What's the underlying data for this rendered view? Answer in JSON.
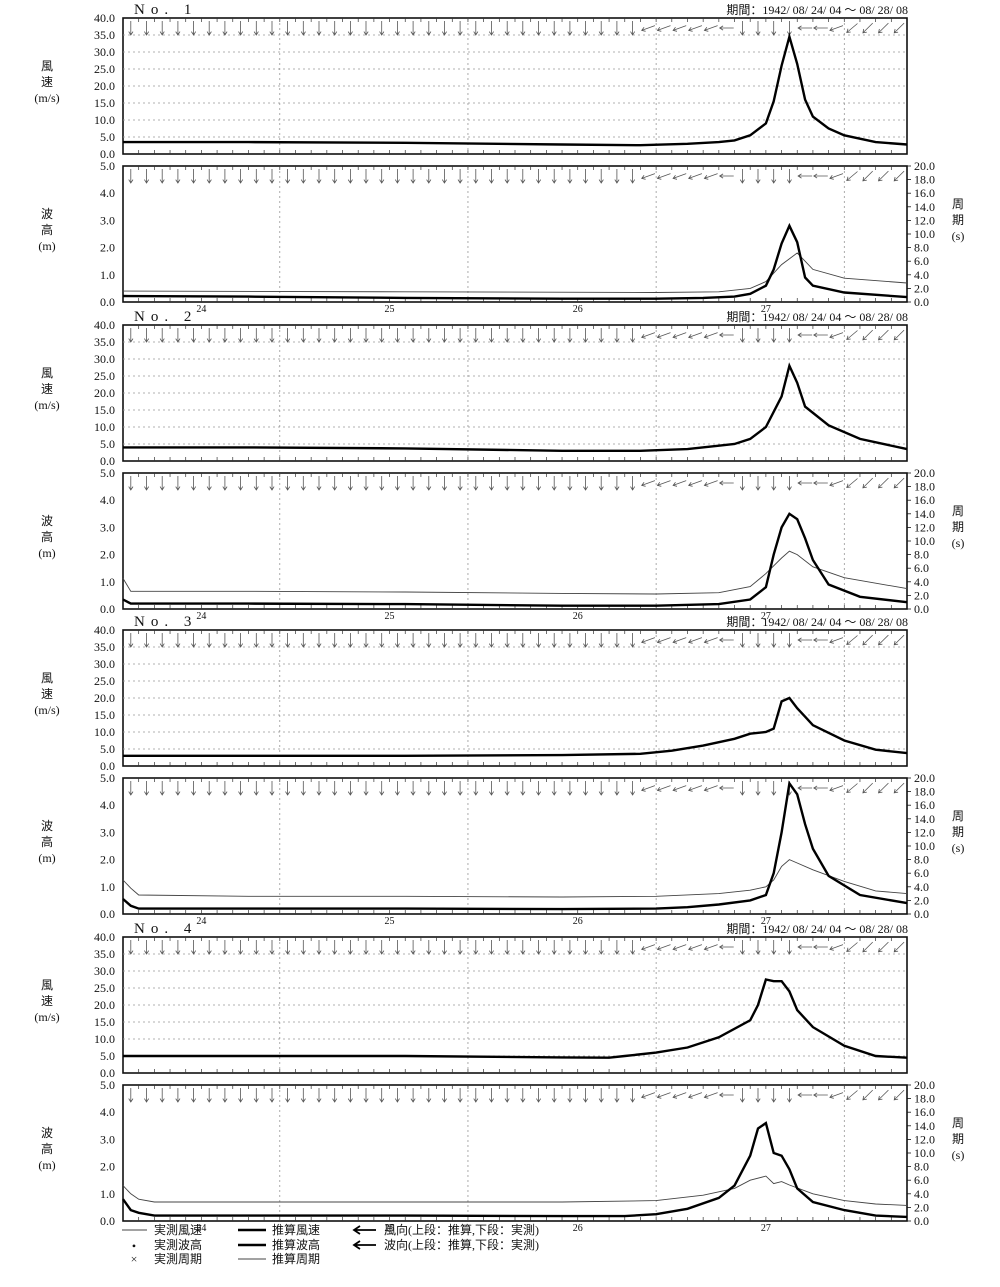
{
  "chart_data": {
    "type": "line",
    "period_prefix": "期間：",
    "period_start": "1942/ 08/ 24/ 04",
    "period_tilde": "～",
    "period_end": "08/ 28/ 08",
    "x_unit": "hour",
    "x_range": [
      4,
      104
    ],
    "day_ticks": [
      {
        "hour": 14,
        "label": "24"
      },
      {
        "hour": 38,
        "label": "25"
      },
      {
        "hour": 62,
        "label": "26"
      },
      {
        "hour": 86,
        "label": "27"
      }
    ],
    "dotted_gridlines_hours": [
      24,
      48,
      72,
      96
    ],
    "wind_axis": {
      "label_lines": [
        "風",
        "速",
        "(m/s)"
      ],
      "ylim": [
        0,
        40
      ],
      "ticks": [
        "0.0",
        "5.0",
        "10.0",
        "15.0",
        "20.0",
        "25.0",
        "30.0",
        "35.0",
        "40.0"
      ]
    },
    "wave_axis": {
      "label_lines": [
        "波",
        "高",
        "(m)"
      ],
      "ylim": [
        0,
        5
      ],
      "ticks": [
        "0.0",
        "1.0",
        "2.0",
        "3.0",
        "4.0",
        "5.0"
      ]
    },
    "period_axis": {
      "label_lines": [
        "周",
        "期",
        "(s)"
      ],
      "ylim": [
        0,
        20
      ],
      "ticks": [
        "0.0",
        "2.0",
        "4.0",
        "6.0",
        "8.0",
        "10.0",
        "12.0",
        "14.0",
        "16.0",
        "18.0",
        "20.0"
      ]
    },
    "arrow_direction_deg": {
      "before_hour": 82,
      "hours": [
        88,
        90,
        92,
        94,
        96,
        98,
        100,
        102
      ],
      "angles": [
        270,
        180,
        180,
        200,
        220,
        225,
        225,
        225
      ]
    },
    "stations": [
      {
        "title": "No. 1",
        "wind_speed": [
          [
            4,
            3.5
          ],
          [
            20,
            3.5
          ],
          [
            40,
            3.3
          ],
          [
            60,
            2.8
          ],
          [
            70,
            2.6
          ],
          [
            76,
            3.0
          ],
          [
            80,
            3.5
          ],
          [
            82,
            4.0
          ],
          [
            84,
            5.5
          ],
          [
            86,
            9.0
          ],
          [
            87,
            15.5
          ],
          [
            88,
            26.0
          ],
          [
            89,
            34.5
          ],
          [
            90,
            26.5
          ],
          [
            91,
            16.0
          ],
          [
            92,
            11.0
          ],
          [
            94,
            7.5
          ],
          [
            96,
            5.5
          ],
          [
            100,
            3.5
          ],
          [
            104,
            2.8
          ]
        ],
        "wave_height": [
          [
            4,
            0.22
          ],
          [
            20,
            0.2
          ],
          [
            40,
            0.15
          ],
          [
            60,
            0.12
          ],
          [
            72,
            0.12
          ],
          [
            78,
            0.15
          ],
          [
            82,
            0.2
          ],
          [
            84,
            0.3
          ],
          [
            86,
            0.6
          ],
          [
            87,
            1.2
          ],
          [
            88,
            2.15
          ],
          [
            89,
            2.8
          ],
          [
            90,
            2.2
          ],
          [
            91,
            0.9
          ],
          [
            92,
            0.6
          ],
          [
            96,
            0.35
          ],
          [
            104,
            0.18
          ]
        ],
        "wave_period": [
          [
            4,
            1.6
          ],
          [
            40,
            1.5
          ],
          [
            72,
            1.4
          ],
          [
            80,
            1.5
          ],
          [
            84,
            2.0
          ],
          [
            86,
            3.0
          ],
          [
            88,
            5.5
          ],
          [
            90,
            7.2
          ],
          [
            91,
            6.0
          ],
          [
            92,
            4.8
          ],
          [
            96,
            3.5
          ],
          [
            104,
            2.8
          ]
        ]
      },
      {
        "title": "No. 2",
        "wind_speed": [
          [
            4,
            4.0
          ],
          [
            20,
            4.0
          ],
          [
            40,
            3.7
          ],
          [
            60,
            3.0
          ],
          [
            70,
            3.0
          ],
          [
            76,
            3.5
          ],
          [
            80,
            4.5
          ],
          [
            82,
            5.0
          ],
          [
            84,
            6.5
          ],
          [
            86,
            10.0
          ],
          [
            88,
            19.0
          ],
          [
            89,
            28.0
          ],
          [
            90,
            23.0
          ],
          [
            91,
            16.0
          ],
          [
            94,
            10.5
          ],
          [
            98,
            6.5
          ],
          [
            104,
            3.5
          ]
        ],
        "wave_height": [
          [
            4,
            0.35
          ],
          [
            5,
            0.2
          ],
          [
            20,
            0.2
          ],
          [
            40,
            0.18
          ],
          [
            60,
            0.12
          ],
          [
            72,
            0.12
          ],
          [
            80,
            0.18
          ],
          [
            84,
            0.35
          ],
          [
            86,
            0.8
          ],
          [
            87,
            2.0
          ],
          [
            88,
            3.0
          ],
          [
            89,
            3.5
          ],
          [
            90,
            3.3
          ],
          [
            91,
            2.6
          ],
          [
            92,
            1.8
          ],
          [
            94,
            0.9
          ],
          [
            98,
            0.45
          ],
          [
            104,
            0.25
          ]
        ],
        "wave_period": [
          [
            4,
            4.5
          ],
          [
            5,
            2.6
          ],
          [
            20,
            2.6
          ],
          [
            40,
            2.5
          ],
          [
            60,
            2.3
          ],
          [
            72,
            2.2
          ],
          [
            80,
            2.4
          ],
          [
            84,
            3.3
          ],
          [
            86,
            5.2
          ],
          [
            88,
            7.5
          ],
          [
            89,
            8.5
          ],
          [
            90,
            8.0
          ],
          [
            92,
            6.2
          ],
          [
            96,
            4.6
          ],
          [
            104,
            3.0
          ]
        ]
      },
      {
        "title": "No. 3",
        "wind_speed": [
          [
            4,
            3.0
          ],
          [
            20,
            3.0
          ],
          [
            40,
            3.0
          ],
          [
            60,
            3.2
          ],
          [
            70,
            3.6
          ],
          [
            74,
            4.5
          ],
          [
            78,
            6.0
          ],
          [
            82,
            8.0
          ],
          [
            84,
            9.5
          ],
          [
            86,
            10.0
          ],
          [
            87,
            11.0
          ],
          [
            88,
            19.0
          ],
          [
            89,
            20.0
          ],
          [
            90,
            17.0
          ],
          [
            91,
            14.5
          ],
          [
            92,
            12.0
          ],
          [
            96,
            7.5
          ],
          [
            100,
            4.8
          ],
          [
            104,
            3.8
          ]
        ],
        "wave_height": [
          [
            4,
            0.55
          ],
          [
            5,
            0.3
          ],
          [
            6,
            0.2
          ],
          [
            20,
            0.2
          ],
          [
            40,
            0.2
          ],
          [
            60,
            0.18
          ],
          [
            72,
            0.2
          ],
          [
            76,
            0.25
          ],
          [
            80,
            0.35
          ],
          [
            84,
            0.5
          ],
          [
            86,
            0.7
          ],
          [
            87,
            1.5
          ],
          [
            88,
            3.0
          ],
          [
            89,
            4.8
          ],
          [
            90,
            4.4
          ],
          [
            91,
            3.3
          ],
          [
            92,
            2.4
          ],
          [
            94,
            1.4
          ],
          [
            98,
            0.7
          ],
          [
            104,
            0.4
          ]
        ],
        "wave_period": [
          [
            4,
            5.0
          ],
          [
            5,
            3.8
          ],
          [
            6,
            2.8
          ],
          [
            20,
            2.6
          ],
          [
            40,
            2.6
          ],
          [
            60,
            2.5
          ],
          [
            72,
            2.6
          ],
          [
            80,
            3.0
          ],
          [
            84,
            3.5
          ],
          [
            86,
            4.0
          ],
          [
            87,
            5.0
          ],
          [
            88,
            7.0
          ],
          [
            89,
            8.0
          ],
          [
            90,
            7.5
          ],
          [
            92,
            6.5
          ],
          [
            96,
            4.8
          ],
          [
            100,
            3.4
          ],
          [
            104,
            3.0
          ]
        ]
      },
      {
        "title": "No. 4",
        "wind_speed": [
          [
            4,
            5.0
          ],
          [
            20,
            5.0
          ],
          [
            40,
            5.0
          ],
          [
            60,
            4.6
          ],
          [
            66,
            4.5
          ],
          [
            68,
            5.0
          ],
          [
            72,
            6.0
          ],
          [
            76,
            7.5
          ],
          [
            80,
            10.5
          ],
          [
            84,
            15.5
          ],
          [
            85,
            20.0
          ],
          [
            86,
            27.5
          ],
          [
            87,
            27.0
          ],
          [
            88,
            27.0
          ],
          [
            89,
            24.0
          ],
          [
            90,
            18.5
          ],
          [
            92,
            13.5
          ],
          [
            96,
            8.0
          ],
          [
            100,
            5.0
          ],
          [
            104,
            4.5
          ]
        ],
        "wave_height": [
          [
            4,
            0.8
          ],
          [
            5,
            0.4
          ],
          [
            6,
            0.3
          ],
          [
            8,
            0.2
          ],
          [
            20,
            0.2
          ],
          [
            40,
            0.2
          ],
          [
            60,
            0.18
          ],
          [
            68,
            0.18
          ],
          [
            72,
            0.25
          ],
          [
            76,
            0.45
          ],
          [
            80,
            0.85
          ],
          [
            82,
            1.3
          ],
          [
            84,
            2.4
          ],
          [
            85,
            3.4
          ],
          [
            86,
            3.6
          ],
          [
            87,
            2.5
          ],
          [
            88,
            2.4
          ],
          [
            89,
            1.9
          ],
          [
            90,
            1.2
          ],
          [
            92,
            0.7
          ],
          [
            96,
            0.4
          ],
          [
            100,
            0.2
          ],
          [
            104,
            0.15
          ]
        ],
        "wave_period": [
          [
            4,
            5.2
          ],
          [
            5,
            4.0
          ],
          [
            6,
            3.2
          ],
          [
            8,
            2.8
          ],
          [
            20,
            2.8
          ],
          [
            40,
            2.8
          ],
          [
            60,
            2.8
          ],
          [
            72,
            3.0
          ],
          [
            78,
            3.8
          ],
          [
            82,
            4.8
          ],
          [
            84,
            6.0
          ],
          [
            86,
            6.6
          ],
          [
            87,
            5.5
          ],
          [
            88,
            5.8
          ],
          [
            89,
            5.3
          ],
          [
            92,
            4.0
          ],
          [
            96,
            3.0
          ],
          [
            100,
            2.5
          ],
          [
            104,
            2.3
          ]
        ]
      }
    ],
    "legend": {
      "obs_wind": "実測風速",
      "obs_wave": "実測波高",
      "obs_period": "実測周期",
      "calc_wind": "推算風速",
      "calc_wave": "推算波高",
      "calc_period": "推算周期",
      "wind_dir": "風向(上段：推算,下段：実測)",
      "wave_dir": "波向(上段：推算,下段：実測)",
      "obs_wave_marker": "•",
      "obs_period_marker": "×"
    }
  }
}
